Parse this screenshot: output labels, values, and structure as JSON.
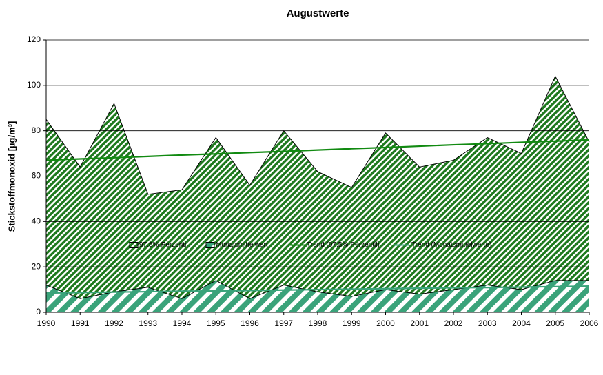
{
  "chart_data": {
    "type": "area",
    "title": "Augustwerte",
    "y_label": "Stickstoffmonoxid [µg/m³]",
    "x": [
      1990,
      1991,
      1992,
      1993,
      1994,
      1995,
      1996,
      1997,
      1998,
      1999,
      2000,
      2001,
      2002,
      2003,
      2004,
      2005,
      2006
    ],
    "xlim": [
      1990,
      2006
    ],
    "xticks": [
      1990,
      1991,
      1992,
      1993,
      1994,
      1995,
      1996,
      1997,
      1998,
      1999,
      2000,
      2001,
      2002,
      2003,
      2004,
      2005,
      2006
    ],
    "ylim": [
      0,
      120
    ],
    "yticks": [
      0,
      20,
      40,
      60,
      80,
      100,
      120
    ],
    "grid": true,
    "legend": "bottom",
    "series": [
      {
        "name": "97,5%-Perzentil",
        "kind": "area",
        "color": "#1f7a1f",
        "values": [
          85,
          64,
          92,
          52,
          54,
          77,
          56,
          80,
          62,
          55,
          79,
          64,
          67,
          77,
          70,
          104,
          75
        ]
      },
      {
        "name": "Monatsmittelwert",
        "kind": "area",
        "color": "#3aa37a",
        "values": [
          12,
          6,
          9,
          11,
          6,
          14,
          6,
          12,
          9,
          7,
          10,
          8,
          10,
          12,
          10,
          14,
          14
        ]
      },
      {
        "name": "Trend (97,5%-Perzentil)",
        "kind": "line",
        "color": "#118a11",
        "values": [
          67,
          67.6,
          68.1,
          68.7,
          69.3,
          69.8,
          70.4,
          70.9,
          71.5,
          72.1,
          72.6,
          73.2,
          73.8,
          74.3,
          74.9,
          75.4,
          76
        ]
      },
      {
        "name": "Trend (Monatsmittelwerte)",
        "kind": "line",
        "color": "#3aa37a",
        "values": [
          8.5,
          8.7,
          8.9,
          9.1,
          9.3,
          9.4,
          9.6,
          9.8,
          10,
          10.2,
          10.4,
          10.6,
          10.8,
          10.9,
          11.1,
          11.3,
          11.5
        ]
      }
    ]
  }
}
